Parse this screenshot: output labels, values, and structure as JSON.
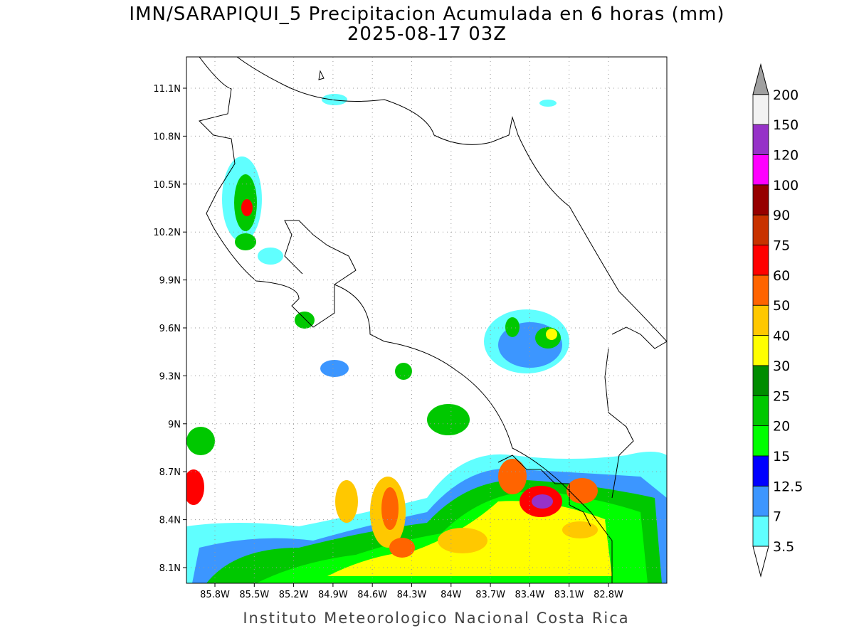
{
  "header": {
    "title": "IMN/SARAPIQUI_5 Precipitacion Acumulada en 6 horas (mm)",
    "subtitle": "2025-08-17 03Z"
  },
  "axes": {
    "lat_labels": [
      "11.1N",
      "10.8N",
      "10.5N",
      "10.2N",
      "9.9N",
      "9.6N",
      "9.3N",
      "9N",
      "8.7N",
      "8.4N",
      "8.1N"
    ],
    "lon_labels": [
      "85.8W",
      "85.5W",
      "85.2W",
      "84.9W",
      "84.6W",
      "84.3W",
      "84W",
      "83.7W",
      "83.4W",
      "83.1W",
      "82.8W"
    ]
  },
  "colorbar": {
    "levels": [
      3.5,
      7,
      12.5,
      15,
      20,
      25,
      30,
      40,
      50,
      60,
      75,
      90,
      100,
      120,
      150,
      200
    ],
    "colors": [
      "#60ffff",
      "#3c96ff",
      "#0000ff",
      "#00ff00",
      "#00c800",
      "#008c00",
      "#ffff00",
      "#ffc800",
      "#ff6400",
      "#ff0000",
      "#c83200",
      "#960000",
      "#ff00ff",
      "#9632c8",
      "#f2f2f2"
    ],
    "under_color": "#ffffff",
    "over_color": "#a0a0a0"
  },
  "footer": {
    "text": "Instituto Meteorologico Nacional Costa Rica"
  }
}
